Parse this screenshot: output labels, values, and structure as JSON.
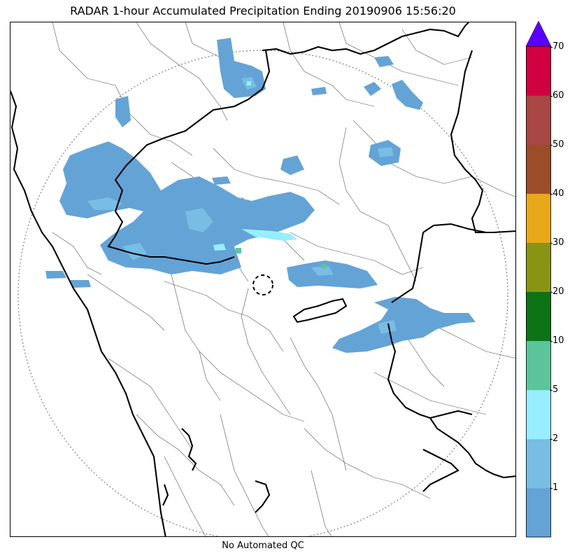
{
  "title": "RADAR 1-hour Accumulated Precipitation Ending 20190906 15:56:20",
  "footer": "No Automated QC",
  "map": {
    "radar_site_marker": "dashed-circle",
    "range_ring": "dotted-circle",
    "boundaries": [
      "coastline",
      "state-borders",
      "district-borders"
    ]
  },
  "colorbar": {
    "extend": "max",
    "ticks": [
      "1",
      "2",
      "5",
      "10",
      "20",
      "30",
      "40",
      "50",
      "60",
      "70"
    ],
    "bins": [
      {
        "range": "0-1",
        "color": "#64a3d6"
      },
      {
        "range": "1-2",
        "color": "#78bde3"
      },
      {
        "range": "2-5",
        "color": "#97eefe"
      },
      {
        "range": "5-10",
        "color": "#5cc49b"
      },
      {
        "range": "10-20",
        "color": "#0c7417"
      },
      {
        "range": "20-30",
        "color": "#8a9414"
      },
      {
        "range": "30-40",
        "color": "#e8a81a"
      },
      {
        "range": "40-50",
        "color": "#9b4d29"
      },
      {
        "range": "50-60",
        "color": "#a84743"
      },
      {
        "range": "60-70",
        "color": "#d10040"
      }
    ],
    "overflow_color": "#5a00ff"
  }
}
